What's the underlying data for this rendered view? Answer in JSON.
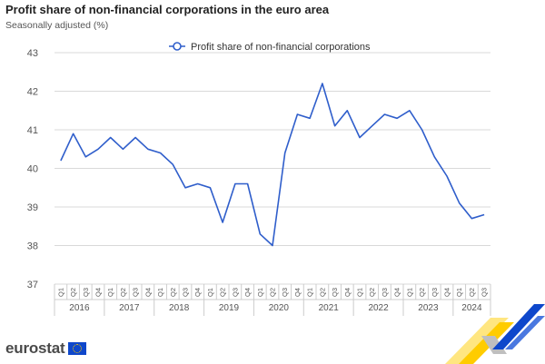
{
  "header": {
    "title": "Profit share of non-financial corporations in the euro area",
    "subtitle": "Seasonally adjusted (%)"
  },
  "logo": {
    "text": "eurostat",
    "flag_icon": "eu-flag-icon"
  },
  "colors": {
    "line": "#2f5ecb",
    "grid": "#d9d9d9",
    "axis_text": "#555555",
    "brand_blue": "#0e47cb",
    "brand_yellow": "#ffcc00"
  },
  "chart_data": {
    "type": "line",
    "title": "Profit share of non-financial corporations in the euro area",
    "subtitle": "Seasonally adjusted (%)",
    "xlabel": "",
    "ylabel": "",
    "ylim": [
      37,
      43
    ],
    "yticks": [
      "37",
      "38",
      "39",
      "40",
      "41",
      "42",
      "43"
    ],
    "grid": "horizontal",
    "legend_position": "top-center",
    "x": [
      "2016 Q1",
      "2016 Q2",
      "2016 Q3",
      "2016 Q4",
      "2017 Q1",
      "2017 Q2",
      "2017 Q3",
      "2017 Q4",
      "2018 Q1",
      "2018 Q2",
      "2018 Q3",
      "2018 Q4",
      "2019 Q1",
      "2019 Q2",
      "2019 Q3",
      "2019 Q4",
      "2020 Q1",
      "2020 Q2",
      "2020 Q3",
      "2020 Q4",
      "2021 Q1",
      "2021 Q2",
      "2021 Q3",
      "2021 Q4",
      "2022 Q1",
      "2022 Q2",
      "2022 Q3",
      "2022 Q4",
      "2023 Q1",
      "2023 Q2",
      "2023 Q3",
      "2023 Q4",
      "2024 Q1",
      "2024 Q2",
      "2024 Q3"
    ],
    "quarters": [
      "Q1",
      "Q2",
      "Q3",
      "Q4",
      "Q1",
      "Q2",
      "Q3",
      "Q4",
      "Q1",
      "Q2",
      "Q3",
      "Q4",
      "Q1",
      "Q2",
      "Q3",
      "Q4",
      "Q1",
      "Q2",
      "Q3",
      "Q4",
      "Q1",
      "Q2",
      "Q3",
      "Q4",
      "Q1",
      "Q2",
      "Q3",
      "Q4",
      "Q1",
      "Q2",
      "Q3",
      "Q4",
      "Q1",
      "Q2",
      "Q3"
    ],
    "years": [
      {
        "label": "2016",
        "count": 4
      },
      {
        "label": "2017",
        "count": 4
      },
      {
        "label": "2018",
        "count": 4
      },
      {
        "label": "2019",
        "count": 4
      },
      {
        "label": "2020",
        "count": 4
      },
      {
        "label": "2021",
        "count": 4
      },
      {
        "label": "2022",
        "count": 4
      },
      {
        "label": "2023",
        "count": 4
      },
      {
        "label": "2024",
        "count": 3
      }
    ],
    "series": [
      {
        "name": "Profit share of non-financial corporations",
        "values": [
          40.2,
          40.9,
          40.3,
          40.5,
          40.8,
          40.5,
          40.8,
          40.5,
          40.4,
          40.1,
          39.5,
          39.6,
          39.5,
          38.6,
          39.6,
          39.6,
          38.3,
          38.0,
          40.4,
          41.4,
          41.3,
          42.2,
          41.1,
          41.5,
          40.8,
          41.1,
          41.4,
          41.3,
          41.5,
          41.0,
          40.3,
          39.8,
          39.1,
          38.7,
          38.8
        ]
      }
    ]
  }
}
